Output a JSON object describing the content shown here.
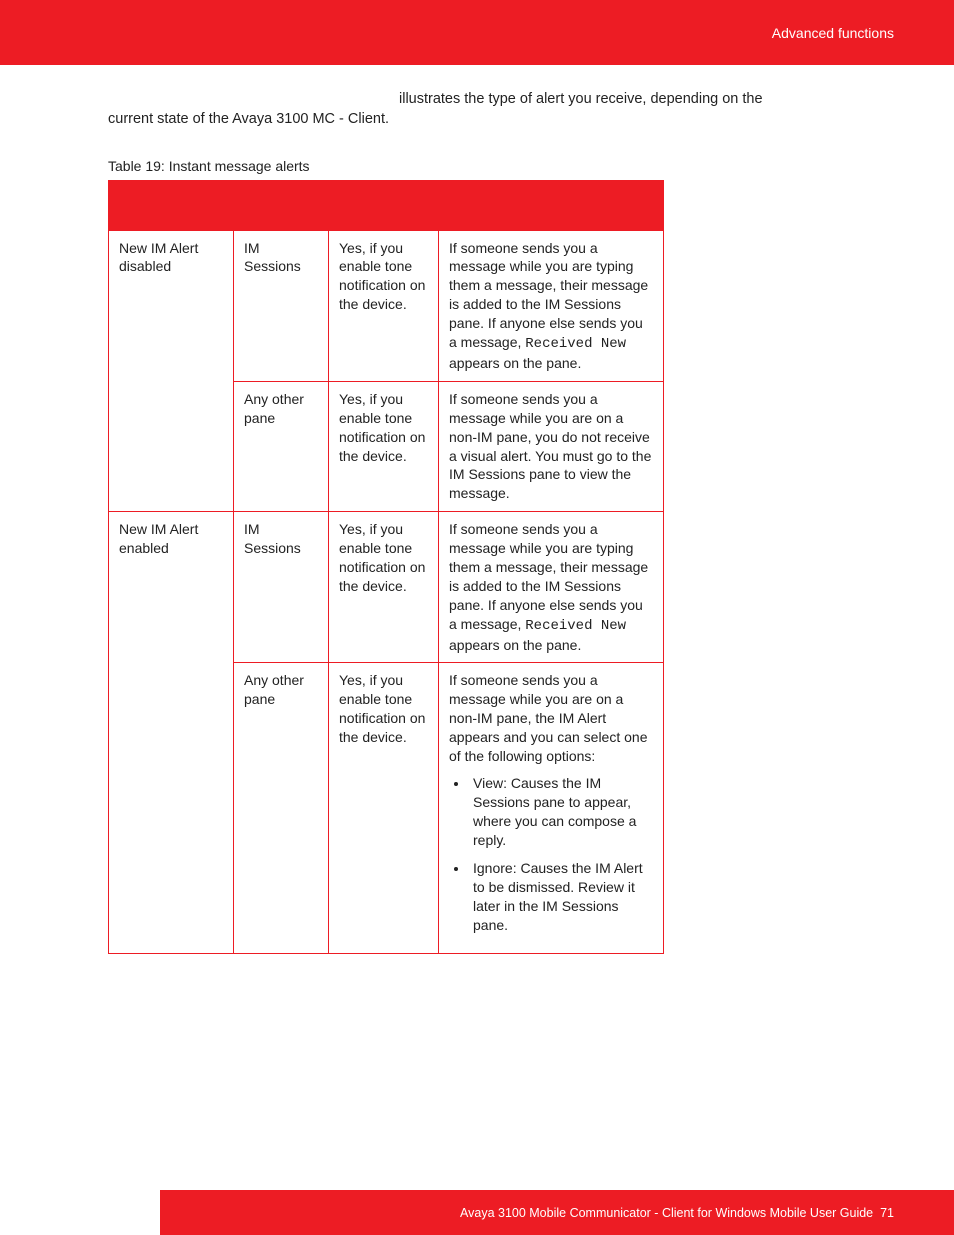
{
  "header": {
    "title": "Advanced functions"
  },
  "intro": {
    "right": "illustrates the type of alert you receive, depending on the",
    "left": "current state of the Avaya 3100 MC - Client."
  },
  "caption": "Table 19: Instant message alerts",
  "table": {
    "rows": [
      {
        "c1": "New IM Alert disabled",
        "c2": "IM Sessions",
        "c3": "Yes, if you enable tone notification on the device.",
        "c4_pre": "If someone sends you a message while you are typing them a message, their message is added to the IM Sessions pane. If anyone else sends you a message, ",
        "c4_mono": "Received New",
        "c4_post": " appears on the pane."
      },
      {
        "c1": "",
        "c2": "Any other pane",
        "c3": "Yes, if you enable tone notification on the device.",
        "c4_pre": "If someone sends you a message while you are on a non-IM pane, you do not receive a visual alert. You must go to the IM Sessions pane to view the message.",
        "c4_mono": "",
        "c4_post": ""
      },
      {
        "c1": "New IM Alert enabled",
        "c2": "IM Sessions",
        "c3": "Yes, if you enable tone notification on the device.",
        "c4_pre": "If someone sends you a message while you are typing them a message, their message is added to the IM Sessions pane. If anyone else sends you a message, ",
        "c4_mono": "Received New",
        "c4_post": " appears on the pane."
      },
      {
        "c1": "",
        "c2": "Any other pane",
        "c3": "Yes, if you enable tone notification on the device.",
        "c4_pre": "If someone sends you a message while you are on a non-IM pane, the IM Alert appears and you can select one of the following options:",
        "c4_mono": "",
        "c4_post": "",
        "options": [
          "View: Causes the IM Sessions pane to appear, where you can compose a reply.",
          "Ignore: Causes the IM Alert to be dismissed. Review it later in the IM Sessions pane."
        ]
      }
    ]
  },
  "footer": {
    "text": "Avaya 3100 Mobile Communicator - Client for Windows Mobile User Guide",
    "page": "71"
  }
}
